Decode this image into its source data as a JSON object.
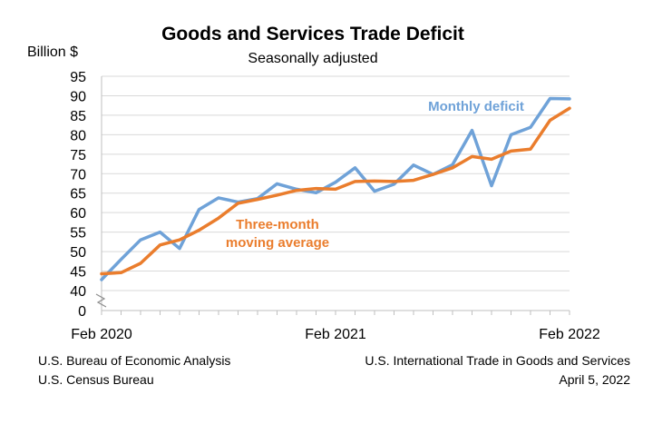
{
  "chart_data": {
    "type": "line",
    "title": "Goods and Services Trade Deficit",
    "subtitle": "Seasonally adjusted",
    "ylabel": "Billion $",
    "xlabel": "",
    "y_ticks": [
      0,
      40,
      45,
      50,
      55,
      60,
      65,
      70,
      75,
      80,
      85,
      90,
      95
    ],
    "y_axis_break": "between 0 and 40",
    "ylim": [
      40,
      95
    ],
    "x_tick_labels": [
      {
        "index": 0,
        "label": "Feb 2020"
      },
      {
        "index": 12,
        "label": "Feb 2021"
      },
      {
        "index": 24,
        "label": "Feb 2022"
      }
    ],
    "x": [
      "Feb 2020",
      "Mar 2020",
      "Apr 2020",
      "May 2020",
      "Jun 2020",
      "Jul 2020",
      "Aug 2020",
      "Sep 2020",
      "Oct 2020",
      "Nov 2020",
      "Dec 2020",
      "Jan 2021",
      "Feb 2021",
      "Mar 2021",
      "Apr 2021",
      "May 2021",
      "Jun 2021",
      "Jul 2021",
      "Aug 2021",
      "Sep 2021",
      "Oct 2021",
      "Nov 2021",
      "Dec 2021",
      "Jan 2022",
      "Feb 2022"
    ],
    "series": [
      {
        "name": "Monthly deficit",
        "label": "Monthly deficit",
        "color": "#6fa2d8",
        "values": [
          42.8,
          48.0,
          53.0,
          55.0,
          50.8,
          60.8,
          63.8,
          62.7,
          63.6,
          67.4,
          66.0,
          65.1,
          67.8,
          71.5,
          65.5,
          67.3,
          72.2,
          69.8,
          72.3,
          81.1,
          66.9,
          80.0,
          81.9,
          89.3,
          89.2
        ]
      },
      {
        "name": "Three-month moving average",
        "label": [
          "Three-month",
          "moving average"
        ],
        "color": "#ea7d2d",
        "values": [
          44.3,
          44.6,
          47.0,
          51.7,
          53.0,
          55.5,
          58.6,
          62.4,
          63.4,
          64.5,
          65.7,
          66.2,
          66.0,
          68.0,
          68.1,
          68.0,
          68.3,
          69.8,
          71.5,
          74.4,
          73.7,
          75.8,
          76.3,
          83.7,
          86.8
        ]
      }
    ],
    "grid": true,
    "legend": "inline annotations"
  },
  "sources": {
    "left": [
      "U.S. Bureau of Economic Analysis",
      "U.S. Census Bureau"
    ],
    "right": [
      "U.S. International Trade in Goods and Services",
      "April 5, 2022"
    ]
  }
}
